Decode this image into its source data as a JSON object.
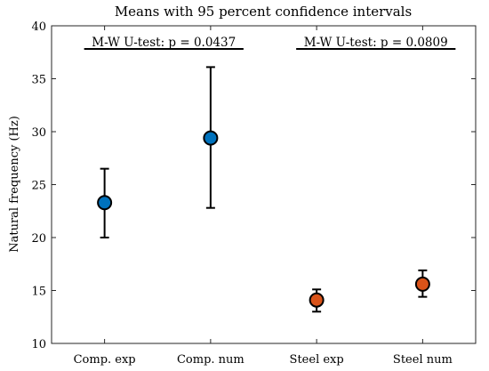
{
  "chart_data": {
    "type": "scatter",
    "title": "Means with 95 percent confidence intervals",
    "xlabel": "",
    "ylabel": "Natural frequency (Hz)",
    "ylim": [
      10,
      40
    ],
    "yticks": [
      10,
      15,
      20,
      25,
      30,
      35,
      40
    ],
    "categories": [
      "Comp. exp",
      "Comp. num",
      "Steel exp",
      "Steel num"
    ],
    "points": [
      {
        "category": "Comp. exp",
        "mean": 23.3,
        "lower": 20.0,
        "upper": 26.5,
        "color": "#0072BD"
      },
      {
        "category": "Comp. num",
        "mean": 29.4,
        "lower": 22.8,
        "upper": 36.1,
        "color": "#0072BD"
      },
      {
        "category": "Steel exp",
        "mean": 14.1,
        "lower": 13.0,
        "upper": 15.1,
        "color": "#D95319"
      },
      {
        "category": "Steel num",
        "mean": 15.6,
        "lower": 14.4,
        "upper": 16.9,
        "color": "#D95319"
      }
    ],
    "annotations": [
      {
        "text": "M-W U-test: p = 0.0437",
        "groups": [
          "Comp. exp",
          "Comp. num"
        ]
      },
      {
        "text": "M-W U-test: p = 0.0809",
        "groups": [
          "Steel exp",
          "Steel num"
        ]
      }
    ],
    "grid": false
  }
}
